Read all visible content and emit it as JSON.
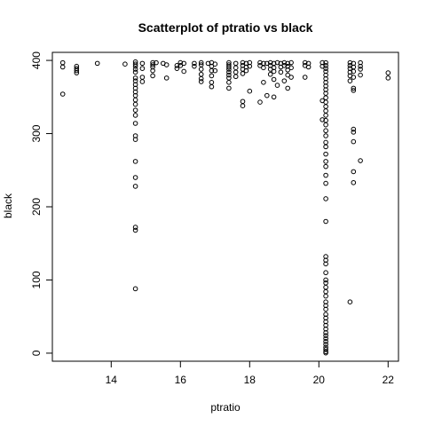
{
  "chart_data": {
    "type": "scatter",
    "title": "Scatterplot of ptratio vs black",
    "xlabel": "ptratio",
    "ylabel": "black",
    "xlim": [
      12.3,
      22.3
    ],
    "ylim": [
      -11.0,
      411.0
    ],
    "x_ticks": [
      14,
      16,
      18,
      20,
      22
    ],
    "y_ticks": [
      0,
      100,
      200,
      300,
      400
    ],
    "grid": false,
    "legend": "none",
    "points": [
      {
        "x": 12.6,
        "y": 396.9
      },
      {
        "x": 12.6,
        "y": 391.0
      },
      {
        "x": 12.6,
        "y": 354.0
      },
      {
        "x": 13.0,
        "y": 392.0
      },
      {
        "x": 13.0,
        "y": 389.0
      },
      {
        "x": 13.0,
        "y": 386.0
      },
      {
        "x": 13.0,
        "y": 383.0
      },
      {
        "x": 13.6,
        "y": 396.0
      },
      {
        "x": 14.4,
        "y": 395.0
      },
      {
        "x": 14.7,
        "y": 398.0
      },
      {
        "x": 14.7,
        "y": 395.0
      },
      {
        "x": 14.7,
        "y": 392.0
      },
      {
        "x": 14.7,
        "y": 388.0
      },
      {
        "x": 14.7,
        "y": 384.0
      },
      {
        "x": 14.7,
        "y": 376.0
      },
      {
        "x": 14.7,
        "y": 372.0
      },
      {
        "x": 14.7,
        "y": 367.0
      },
      {
        "x": 14.7,
        "y": 362.0
      },
      {
        "x": 14.7,
        "y": 357.0
      },
      {
        "x": 14.7,
        "y": 352.0
      },
      {
        "x": 14.7,
        "y": 346.0
      },
      {
        "x": 14.7,
        "y": 340.0
      },
      {
        "x": 14.7,
        "y": 332.0
      },
      {
        "x": 14.7,
        "y": 325.0
      },
      {
        "x": 14.7,
        "y": 314.0
      },
      {
        "x": 14.7,
        "y": 297.0
      },
      {
        "x": 14.7,
        "y": 292.0
      },
      {
        "x": 14.7,
        "y": 262.0
      },
      {
        "x": 14.7,
        "y": 240.0
      },
      {
        "x": 14.7,
        "y": 228.0
      },
      {
        "x": 14.7,
        "y": 172.0
      },
      {
        "x": 14.7,
        "y": 168.0
      },
      {
        "x": 14.7,
        "y": 88.0
      },
      {
        "x": 14.9,
        "y": 396.0
      },
      {
        "x": 14.9,
        "y": 389.0
      },
      {
        "x": 14.9,
        "y": 377.0
      },
      {
        "x": 14.9,
        "y": 371.0
      },
      {
        "x": 15.2,
        "y": 397.0
      },
      {
        "x": 15.2,
        "y": 394.0
      },
      {
        "x": 15.2,
        "y": 391.0
      },
      {
        "x": 15.2,
        "y": 386.0
      },
      {
        "x": 15.2,
        "y": 379.0
      },
      {
        "x": 15.3,
        "y": 396.9
      },
      {
        "x": 15.5,
        "y": 396.0
      },
      {
        "x": 15.6,
        "y": 394.0
      },
      {
        "x": 15.6,
        "y": 376.0
      },
      {
        "x": 15.9,
        "y": 393.0
      },
      {
        "x": 15.9,
        "y": 389.0
      },
      {
        "x": 16.0,
        "y": 397.0
      },
      {
        "x": 16.0,
        "y": 393.0
      },
      {
        "x": 16.1,
        "y": 396.0
      },
      {
        "x": 16.1,
        "y": 385.0
      },
      {
        "x": 16.4,
        "y": 396.0
      },
      {
        "x": 16.4,
        "y": 392.0
      },
      {
        "x": 16.6,
        "y": 397.0
      },
      {
        "x": 16.6,
        "y": 394.0
      },
      {
        "x": 16.6,
        "y": 388.0
      },
      {
        "x": 16.6,
        "y": 381.0
      },
      {
        "x": 16.6,
        "y": 375.0
      },
      {
        "x": 16.6,
        "y": 371.0
      },
      {
        "x": 16.8,
        "y": 396.0
      },
      {
        "x": 16.9,
        "y": 397.0
      },
      {
        "x": 16.9,
        "y": 392.0
      },
      {
        "x": 16.9,
        "y": 386.0
      },
      {
        "x": 16.9,
        "y": 379.0
      },
      {
        "x": 16.9,
        "y": 370.0
      },
      {
        "x": 16.9,
        "y": 364.0
      },
      {
        "x": 17.0,
        "y": 395.0
      },
      {
        "x": 17.0,
        "y": 386.0
      },
      {
        "x": 17.4,
        "y": 397.0
      },
      {
        "x": 17.4,
        "y": 394.0
      },
      {
        "x": 17.4,
        "y": 391.0
      },
      {
        "x": 17.4,
        "y": 388.0
      },
      {
        "x": 17.4,
        "y": 384.0
      },
      {
        "x": 17.4,
        "y": 380.0
      },
      {
        "x": 17.4,
        "y": 376.0
      },
      {
        "x": 17.4,
        "y": 370.0
      },
      {
        "x": 17.4,
        "y": 362.0
      },
      {
        "x": 17.6,
        "y": 396.0
      },
      {
        "x": 17.6,
        "y": 390.0
      },
      {
        "x": 17.6,
        "y": 384.0
      },
      {
        "x": 17.6,
        "y": 378.0
      },
      {
        "x": 17.8,
        "y": 397.0
      },
      {
        "x": 17.8,
        "y": 393.0
      },
      {
        "x": 17.8,
        "y": 388.0
      },
      {
        "x": 17.8,
        "y": 382.0
      },
      {
        "x": 17.8,
        "y": 344.0
      },
      {
        "x": 17.8,
        "y": 338.0
      },
      {
        "x": 17.9,
        "y": 396.0
      },
      {
        "x": 17.9,
        "y": 391.0
      },
      {
        "x": 17.9,
        "y": 386.0
      },
      {
        "x": 18.0,
        "y": 397.0
      },
      {
        "x": 18.0,
        "y": 392.0
      },
      {
        "x": 18.0,
        "y": 358.0
      },
      {
        "x": 18.3,
        "y": 397.0
      },
      {
        "x": 18.3,
        "y": 393.0
      },
      {
        "x": 18.3,
        "y": 343.0
      },
      {
        "x": 18.4,
        "y": 396.0
      },
      {
        "x": 18.4,
        "y": 390.0
      },
      {
        "x": 18.4,
        "y": 370.0
      },
      {
        "x": 18.5,
        "y": 396.0
      },
      {
        "x": 18.5,
        "y": 352.0
      },
      {
        "x": 18.6,
        "y": 397.0
      },
      {
        "x": 18.6,
        "y": 393.0
      },
      {
        "x": 18.6,
        "y": 388.0
      },
      {
        "x": 18.6,
        "y": 381.0
      },
      {
        "x": 18.7,
        "y": 396.0
      },
      {
        "x": 18.7,
        "y": 390.0
      },
      {
        "x": 18.7,
        "y": 385.0
      },
      {
        "x": 18.7,
        "y": 374.0
      },
      {
        "x": 18.7,
        "y": 350.0
      },
      {
        "x": 18.8,
        "y": 397.0
      },
      {
        "x": 18.8,
        "y": 366.0
      },
      {
        "x": 18.9,
        "y": 396.0
      },
      {
        "x": 18.9,
        "y": 391.0
      },
      {
        "x": 18.9,
        "y": 384.0
      },
      {
        "x": 19.0,
        "y": 397.0
      },
      {
        "x": 19.0,
        "y": 393.0
      },
      {
        "x": 19.0,
        "y": 372.0
      },
      {
        "x": 19.1,
        "y": 396.0
      },
      {
        "x": 19.1,
        "y": 392.0
      },
      {
        "x": 19.1,
        "y": 387.0
      },
      {
        "x": 19.1,
        "y": 380.0
      },
      {
        "x": 19.1,
        "y": 362.0
      },
      {
        "x": 19.2,
        "y": 397.0
      },
      {
        "x": 19.2,
        "y": 390.0
      },
      {
        "x": 19.2,
        "y": 377.0
      },
      {
        "x": 19.6,
        "y": 397.0
      },
      {
        "x": 19.6,
        "y": 393.0
      },
      {
        "x": 19.6,
        "y": 377.0
      },
      {
        "x": 19.7,
        "y": 396.0
      },
      {
        "x": 19.7,
        "y": 391.0
      },
      {
        "x": 20.1,
        "y": 397.0
      },
      {
        "x": 20.1,
        "y": 392.0
      },
      {
        "x": 20.1,
        "y": 345.0
      },
      {
        "x": 20.1,
        "y": 319.0
      },
      {
        "x": 20.2,
        "y": 396.9
      },
      {
        "x": 20.2,
        "y": 393.0
      },
      {
        "x": 20.2,
        "y": 389.0
      },
      {
        "x": 20.2,
        "y": 385.0
      },
      {
        "x": 20.2,
        "y": 380.0
      },
      {
        "x": 20.2,
        "y": 375.0
      },
      {
        "x": 20.2,
        "y": 370.0
      },
      {
        "x": 20.2,
        "y": 365.0
      },
      {
        "x": 20.2,
        "y": 360.0
      },
      {
        "x": 20.2,
        "y": 355.0
      },
      {
        "x": 20.2,
        "y": 349.0
      },
      {
        "x": 20.2,
        "y": 343.0
      },
      {
        "x": 20.2,
        "y": 337.0
      },
      {
        "x": 20.2,
        "y": 331.0
      },
      {
        "x": 20.2,
        "y": 325.0
      },
      {
        "x": 20.2,
        "y": 318.0
      },
      {
        "x": 20.2,
        "y": 312.0
      },
      {
        "x": 20.2,
        "y": 304.0
      },
      {
        "x": 20.2,
        "y": 297.0
      },
      {
        "x": 20.2,
        "y": 288.0
      },
      {
        "x": 20.2,
        "y": 282.0
      },
      {
        "x": 20.2,
        "y": 272.0
      },
      {
        "x": 20.2,
        "y": 262.0
      },
      {
        "x": 20.2,
        "y": 255.0
      },
      {
        "x": 20.2,
        "y": 243.0
      },
      {
        "x": 20.2,
        "y": 232.0
      },
      {
        "x": 20.2,
        "y": 211.0
      },
      {
        "x": 20.2,
        "y": 180.0
      },
      {
        "x": 20.2,
        "y": 132.0
      },
      {
        "x": 20.2,
        "y": 127.0
      },
      {
        "x": 20.2,
        "y": 122.0
      },
      {
        "x": 20.2,
        "y": 110.0
      },
      {
        "x": 20.2,
        "y": 100.0
      },
      {
        "x": 20.2,
        "y": 96.0
      },
      {
        "x": 20.2,
        "y": 90.0
      },
      {
        "x": 20.2,
        "y": 84.0
      },
      {
        "x": 20.2,
        "y": 78.0
      },
      {
        "x": 20.2,
        "y": 70.0
      },
      {
        "x": 20.2,
        "y": 65.0
      },
      {
        "x": 20.2,
        "y": 60.0
      },
      {
        "x": 20.2,
        "y": 53.0
      },
      {
        "x": 20.2,
        "y": 48.0
      },
      {
        "x": 20.2,
        "y": 43.0
      },
      {
        "x": 20.2,
        "y": 38.0
      },
      {
        "x": 20.2,
        "y": 33.0
      },
      {
        "x": 20.2,
        "y": 28.0
      },
      {
        "x": 20.2,
        "y": 24.0
      },
      {
        "x": 20.2,
        "y": 20.0
      },
      {
        "x": 20.2,
        "y": 16.0
      },
      {
        "x": 20.2,
        "y": 12.0
      },
      {
        "x": 20.2,
        "y": 8.0
      },
      {
        "x": 20.2,
        "y": 5.0
      },
      {
        "x": 20.2,
        "y": 2.0
      },
      {
        "x": 20.2,
        "y": 0.3
      },
      {
        "x": 20.9,
        "y": 396.9
      },
      {
        "x": 20.9,
        "y": 393.0
      },
      {
        "x": 20.9,
        "y": 389.0
      },
      {
        "x": 20.9,
        "y": 384.0
      },
      {
        "x": 20.9,
        "y": 379.0
      },
      {
        "x": 20.9,
        "y": 372.0
      },
      {
        "x": 20.9,
        "y": 70.0
      },
      {
        "x": 21.0,
        "y": 396.0
      },
      {
        "x": 21.0,
        "y": 391.0
      },
      {
        "x": 21.0,
        "y": 385.0
      },
      {
        "x": 21.0,
        "y": 377.0
      },
      {
        "x": 21.0,
        "y": 362.0
      },
      {
        "x": 21.0,
        "y": 359.0
      },
      {
        "x": 21.0,
        "y": 306.0
      },
      {
        "x": 21.0,
        "y": 302.0
      },
      {
        "x": 21.0,
        "y": 289.0
      },
      {
        "x": 21.0,
        "y": 248.0
      },
      {
        "x": 21.0,
        "y": 233.0
      },
      {
        "x": 21.2,
        "y": 396.9
      },
      {
        "x": 21.2,
        "y": 392.0
      },
      {
        "x": 21.2,
        "y": 388.0
      },
      {
        "x": 21.2,
        "y": 380.0
      },
      {
        "x": 21.2,
        "y": 263.0
      },
      {
        "x": 22.0,
        "y": 383.0
      },
      {
        "x": 22.0,
        "y": 376.0
      }
    ]
  }
}
